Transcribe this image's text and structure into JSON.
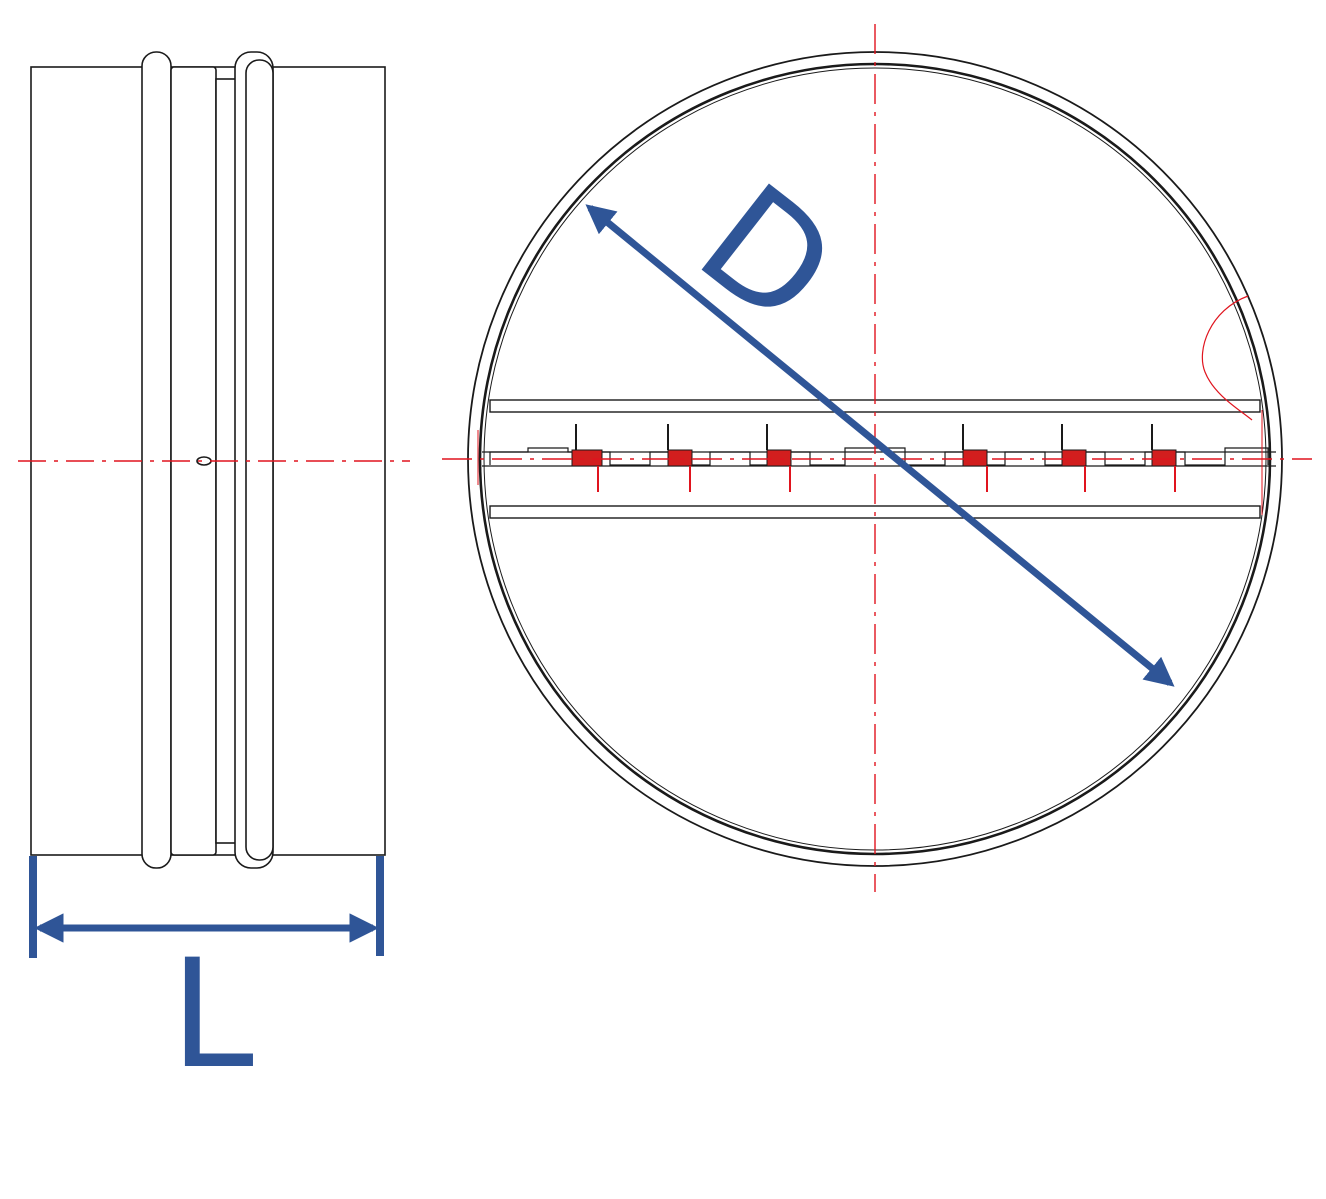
{
  "dimensions": {
    "length_label": "L",
    "diameter_label": "D"
  },
  "colors": {
    "outline": "#1a1a1a",
    "centerline": "#e0141e",
    "dimension": "#2f5597",
    "spring_fill": "#d21e1e"
  },
  "damper": {
    "spring_count": 6,
    "hinge_tab_count": 6
  }
}
